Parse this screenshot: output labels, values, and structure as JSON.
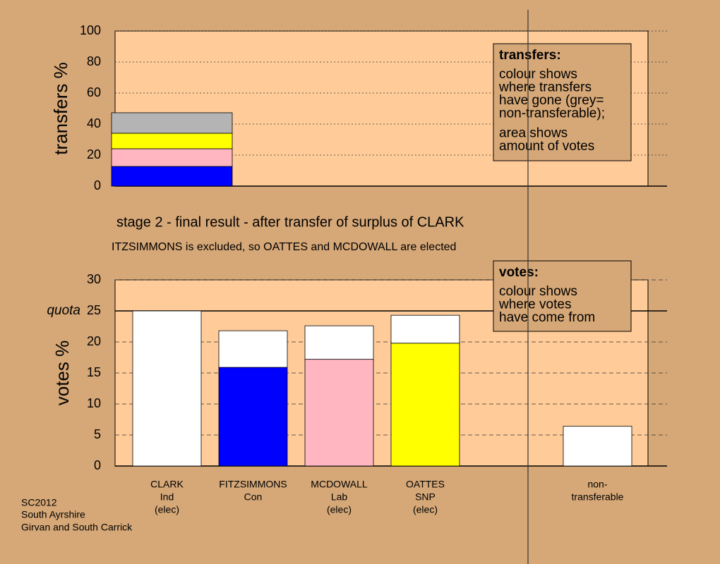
{
  "stage_title": "stage 2 - final result - after transfer of surplus of CLARK",
  "stage_note": "ITZSIMMONS is excluded, so OATTES and MCDOWALL are elected",
  "footer": [
    "SC2012",
    "South Ayrshire",
    "Girvan and South Carrick"
  ],
  "chart_data": [
    {
      "type": "bar",
      "stacked": true,
      "ylabel": "transfers %",
      "ylim": [
        0,
        100
      ],
      "yticks": [
        0,
        20,
        40,
        60,
        80,
        100
      ],
      "grid": true,
      "series": [
        {
          "color": "#0000ff",
          "values": [
            12.7
          ]
        },
        {
          "color": "#ffb6c1",
          "values": [
            11.4
          ]
        },
        {
          "color": "#ffff00",
          "values": [
            10
          ]
        },
        {
          "color": "#b4b4b4",
          "values": [
            13.2
          ]
        }
      ],
      "note": {
        "title": "transfers:",
        "lines": [
          "colour shows",
          "where transfers",
          "have gone (grey=",
          "non-transferable);",
          "area shows",
          "amount of votes"
        ]
      }
    },
    {
      "type": "bar",
      "stacked": true,
      "ylabel": "votes %",
      "ylim": [
        0,
        30
      ],
      "yticks": [
        0,
        5,
        10,
        15,
        20,
        25,
        30
      ],
      "grid": true,
      "quota": {
        "label": "quota",
        "value": 25
      },
      "categories": [
        [
          "CLARK",
          "Ind",
          "(elec)"
        ],
        [
          "FITZSIMMONS",
          "Con"
        ],
        [
          "MCDOWALL",
          "Lab",
          "(elec)"
        ],
        [
          "OATTES",
          "SNP",
          "(elec)"
        ],
        null,
        [
          "non-",
          "transferable"
        ]
      ],
      "series": [
        {
          "colors": [
            "#ffffff",
            "#0000ff",
            "#ffb6c1",
            "#ffff00",
            null,
            "#ffffff"
          ],
          "values": [
            25,
            15.9,
            17.2,
            19.8,
            null,
            6.4
          ]
        },
        {
          "color": "#ffffff",
          "values": [
            null,
            5.9,
            5.4,
            4.5,
            null,
            null
          ]
        }
      ],
      "note": {
        "title": "votes:",
        "lines": [
          "colour shows",
          "where votes",
          "have come from"
        ]
      }
    }
  ]
}
